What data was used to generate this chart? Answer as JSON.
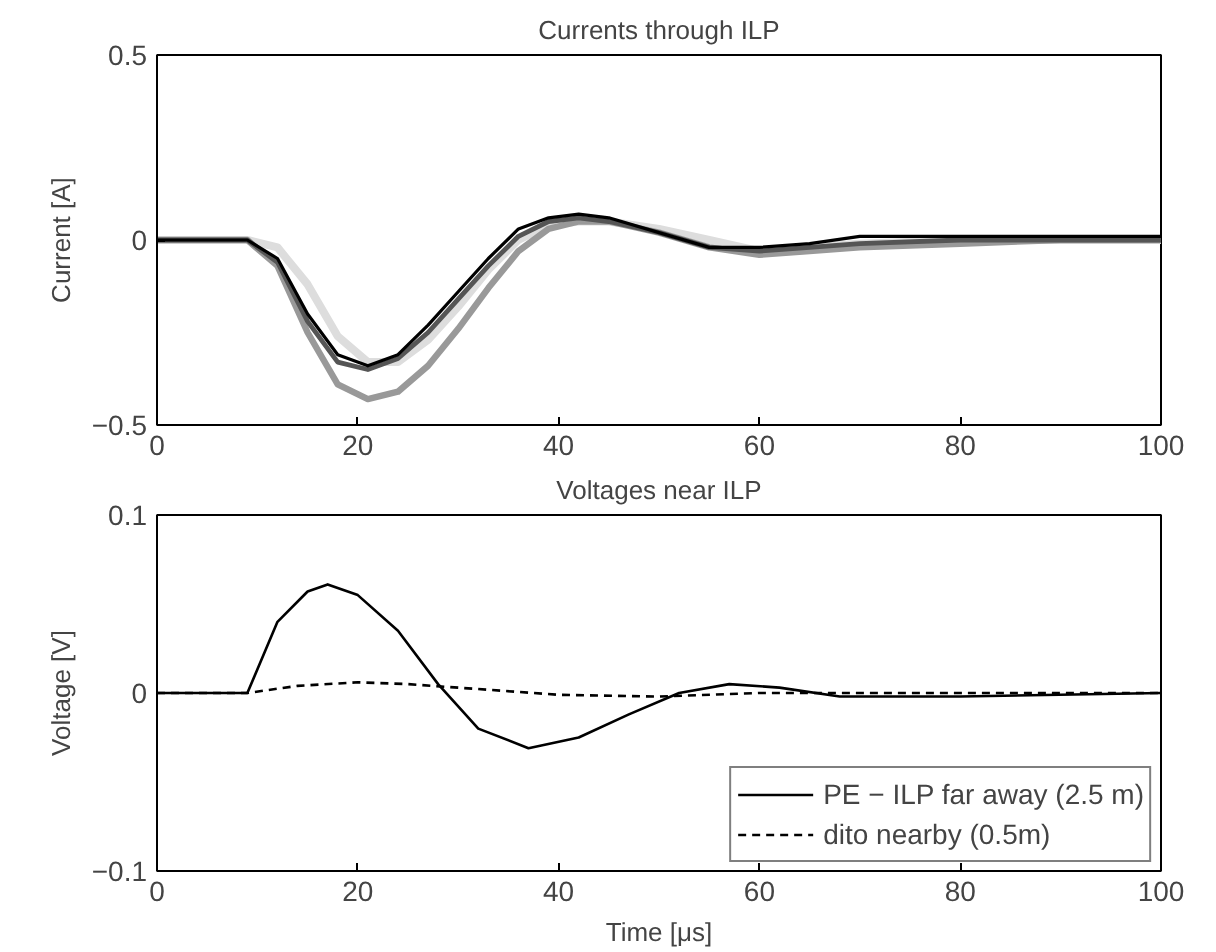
{
  "chart_data": [
    {
      "type": "line",
      "title": "Currents through ILP",
      "ylabel": "Current [A]",
      "xlim": [
        0,
        100
      ],
      "xticks": [
        0,
        20,
        40,
        60,
        80,
        100
      ],
      "ylim": [
        -0.5,
        0.5
      ],
      "yticks": [
        {
          "value": -0.5,
          "label": "−0.5"
        },
        0,
        0.5
      ],
      "grid": false,
      "legend": false,
      "x": [
        0,
        9,
        12,
        15,
        18,
        21,
        24,
        27,
        30,
        33,
        36,
        39,
        42,
        45,
        50,
        55,
        60,
        65,
        70,
        80,
        90,
        100
      ],
      "series": [
        {
          "color": "#dddddd",
          "values": [
            0,
            0,
            -0.02,
            -0.12,
            -0.26,
            -0.33,
            -0.33,
            -0.27,
            -0.18,
            -0.08,
            0,
            0.04,
            0.05,
            0.05,
            0.03,
            0,
            -0.03,
            -0.02,
            -0.01,
            0,
            0,
            0
          ]
        },
        {
          "color": "#999999",
          "values": [
            0,
            0,
            -0.07,
            -0.25,
            -0.39,
            -0.43,
            -0.41,
            -0.34,
            -0.24,
            -0.13,
            -0.03,
            0.03,
            0.05,
            0.05,
            0.02,
            -0.02,
            -0.04,
            -0.03,
            -0.02,
            -0.01,
            0,
            0
          ]
        },
        {
          "color": "#555555",
          "values": [
            0,
            0,
            -0.06,
            -0.22,
            -0.33,
            -0.35,
            -0.32,
            -0.25,
            -0.16,
            -0.07,
            0.01,
            0.05,
            0.06,
            0.05,
            0.02,
            -0.02,
            -0.03,
            -0.02,
            -0.01,
            0,
            0,
            0
          ]
        },
        {
          "color": "#000000",
          "values": [
            0,
            0,
            -0.05,
            -0.2,
            -0.31,
            -0.34,
            -0.31,
            -0.23,
            -0.14,
            -0.05,
            0.03,
            0.06,
            0.07,
            0.06,
            0.02,
            -0.02,
            -0.02,
            -0.01,
            0.01,
            0.01,
            0.01,
            0.01
          ]
        }
      ]
    },
    {
      "type": "line",
      "title": "Voltages near ILP",
      "xlabel": "Time [μs]",
      "ylabel": "Voltage [V]",
      "xlim": [
        0,
        100
      ],
      "xticks": [
        0,
        20,
        40,
        60,
        80,
        100
      ],
      "ylim": [
        -0.1,
        0.1
      ],
      "yticks": [
        {
          "value": -0.1,
          "label": "−0.1"
        },
        0,
        0.1
      ],
      "grid": false,
      "legend": "bottom right",
      "series": [
        {
          "name": "PE − ILP far away (2.5 m)",
          "color": "#000000",
          "line_style": "solid",
          "x": [
            0,
            9,
            12,
            15,
            17,
            20,
            24,
            28,
            32,
            37,
            42,
            47,
            52,
            57,
            62,
            68,
            80,
            100
          ],
          "values": [
            0,
            0,
            0.04,
            0.057,
            0.061,
            0.055,
            0.035,
            0.005,
            -0.02,
            -0.031,
            -0.025,
            -0.012,
            0,
            0.005,
            0.003,
            -0.002,
            -0.002,
            0
          ]
        },
        {
          "name": "dito nearby (0.5m)",
          "color": "#000000",
          "line_style": "dashed",
          "x": [
            0,
            9,
            14,
            20,
            25,
            30,
            40,
            50,
            60,
            70,
            100
          ],
          "values": [
            0,
            0,
            0.004,
            0.006,
            0.005,
            0.003,
            -0.001,
            -0.002,
            0,
            0,
            0
          ]
        }
      ]
    }
  ]
}
